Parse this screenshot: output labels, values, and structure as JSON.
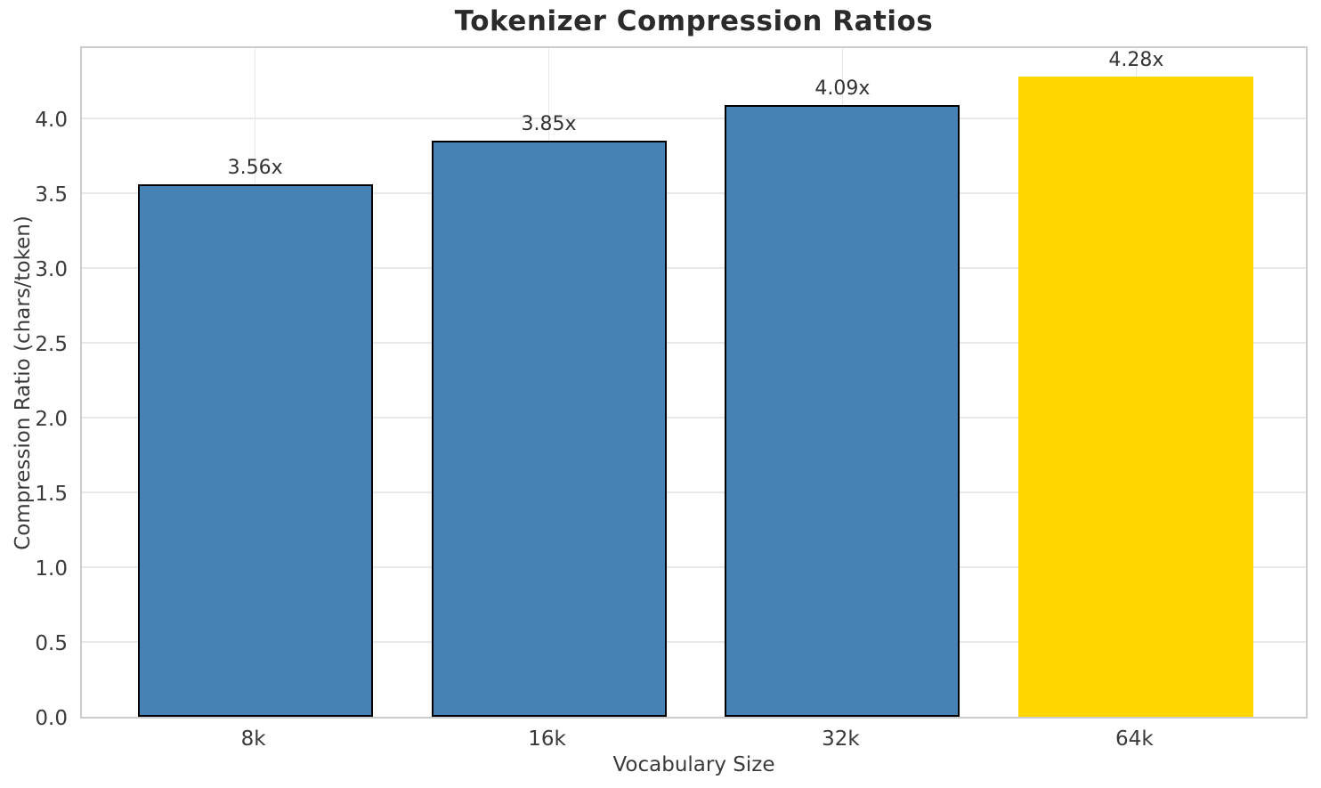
{
  "chart_data": {
    "type": "bar",
    "title": "Tokenizer Compression Ratios",
    "xlabel": "Vocabulary Size",
    "ylabel": "Compression Ratio (chars/token)",
    "categories": [
      "8k",
      "16k",
      "32k",
      "64k"
    ],
    "values": [
      3.56,
      3.85,
      4.09,
      4.28
    ],
    "bar_labels": [
      "3.56x",
      "3.85x",
      "4.09x",
      "4.28x"
    ],
    "bar_colors": [
      "#4682B4",
      "#4682B4",
      "#4682B4",
      "#FFD700"
    ],
    "bar_edge_colors": [
      "#000000",
      "#000000",
      "#000000",
      "none"
    ],
    "ylim": [
      0,
      4.494
    ],
    "xlim": [
      -0.59,
      3.59
    ],
    "yticks": [
      "0.0",
      "0.5",
      "1.0",
      "1.5",
      "2.0",
      "2.5",
      "3.0",
      "3.5",
      "4.0"
    ],
    "bar_width_units": 0.8,
    "grid": true,
    "legend": "none"
  },
  "colors": {
    "grid": "#e8e8e8",
    "spine": "#cccccc",
    "title_text": "#2b2b2b",
    "tick_text": "#3a3a3a",
    "value_text": "#333333",
    "background": "#ffffff"
  }
}
